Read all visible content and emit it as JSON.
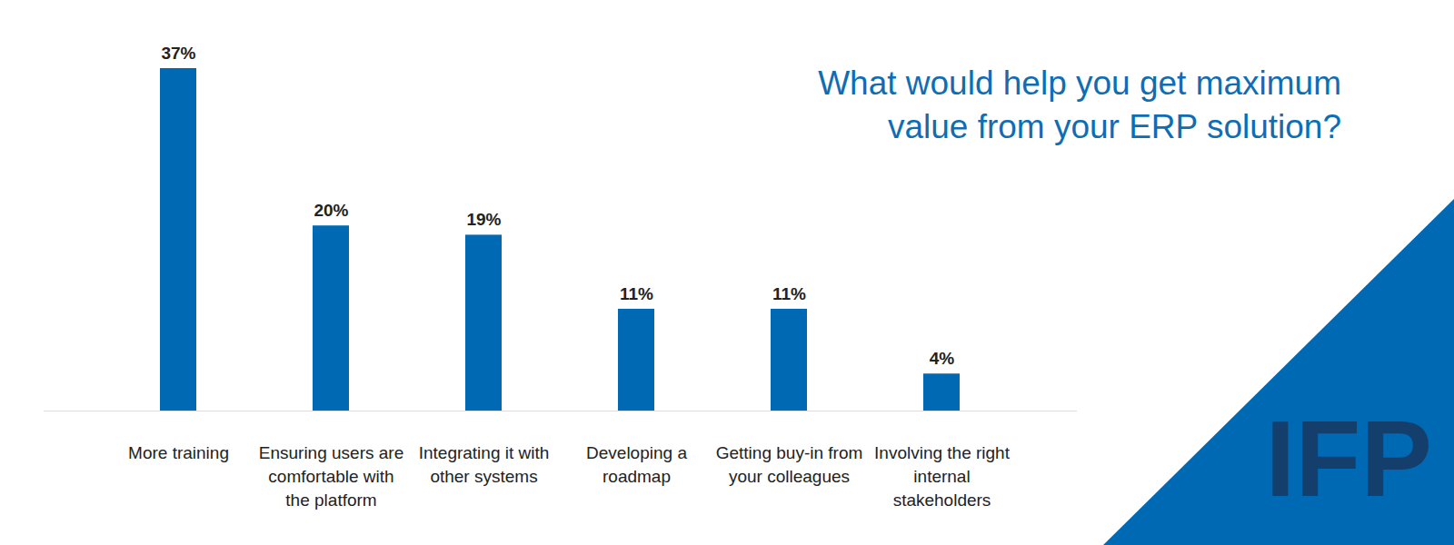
{
  "chart_data": {
    "type": "bar",
    "title": "What would help you get maximum value from your ERP solution?",
    "categories": [
      "More training",
      "Ensuring users are comfortable with the platform",
      "Integrating it with other systems",
      "Developing a roadmap",
      "Getting buy-in from your colleagues",
      "Involving the right internal stakeholders"
    ],
    "values": [
      37,
      20,
      19,
      11,
      11,
      4
    ],
    "value_labels": [
      "37%",
      "20%",
      "19%",
      "11%",
      "11%",
      "4%"
    ],
    "color": "#0069b4",
    "ylim": [
      0,
      37
    ],
    "data_labels": true,
    "tick_labels": "x",
    "grid": false,
    "annotations": [
      "IFP"
    ]
  }
}
